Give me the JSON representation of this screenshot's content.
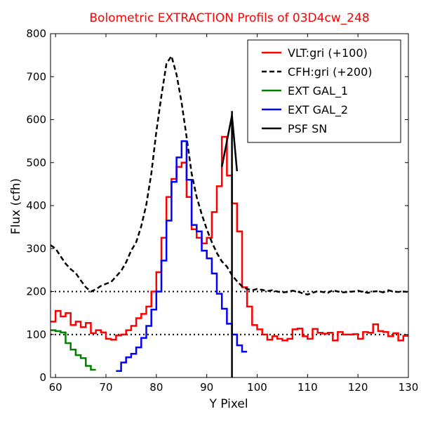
{
  "chart_data": {
    "type": "line",
    "title": "Bolometric EXTRACTION Profils of 03D4cw_248",
    "title_color": "#ff0000",
    "xlabel": "Y Pixel",
    "ylabel": "Flux (cfh)",
    "xlim": [
      59,
      130
    ],
    "ylim": [
      0,
      800
    ],
    "xticks": [
      60,
      70,
      80,
      90,
      100,
      110,
      120,
      130
    ],
    "yticks": [
      0,
      100,
      200,
      300,
      400,
      500,
      600,
      700,
      800
    ],
    "grid": false,
    "legend_position": "top-right",
    "reference_lines": [
      {
        "y": 200,
        "style": "dotted",
        "color": "#000000"
      },
      {
        "y": 100,
        "style": "dotted",
        "color": "#000000"
      }
    ],
    "series": [
      {
        "name": "VLT:gri (+100)",
        "color": "#ff0000",
        "style": "steps",
        "x": [
          59,
          60,
          61,
          62,
          63,
          64,
          65,
          66,
          67,
          68,
          69,
          70,
          71,
          72,
          73,
          74,
          75,
          76,
          77,
          78,
          79,
          80,
          81,
          82,
          83,
          84,
          85,
          86,
          87,
          88,
          89,
          90,
          91,
          92,
          93,
          94,
          95,
          96,
          97,
          98,
          99,
          100,
          101,
          102,
          103,
          104,
          105,
          106,
          107,
          108,
          109,
          110,
          111,
          112,
          113,
          114,
          115,
          116,
          117,
          118,
          119,
          120,
          121,
          122,
          123,
          124,
          125,
          126,
          127,
          128,
          129
        ],
        "values": [
          130,
          155,
          142,
          150,
          122,
          130,
          117,
          127,
          103,
          110,
          105,
          90,
          88,
          98,
          100,
          110,
          120,
          138,
          148,
          165,
          200,
          245,
          325,
          420,
          462,
          490,
          500,
          420,
          345,
          325,
          312,
          325,
          385,
          445,
          560,
          470,
          405,
          340,
          210,
          165,
          122,
          112,
          100,
          88,
          96,
          90,
          86,
          90,
          112,
          114,
          96,
          90,
          113,
          104,
          102,
          104,
          86,
          106,
          100,
          100,
          101,
          90,
          106,
          104,
          124,
          108,
          106,
          96,
          103,
          86,
          97
        ],
        "x_end": 130
      },
      {
        "name": "CFH:gri (+200)",
        "color": "#000000",
        "style": "dashed",
        "x": [
          59,
          60,
          61,
          62,
          63,
          64,
          65,
          66,
          67,
          68,
          69,
          70,
          71,
          72,
          73,
          74,
          75,
          76,
          77,
          78,
          79,
          80,
          81,
          82,
          83,
          84,
          85,
          86,
          87,
          88,
          89,
          90,
          91,
          92,
          93,
          94,
          95,
          96,
          97,
          98,
          99,
          100,
          101,
          102,
          103,
          104,
          105,
          106,
          107,
          108,
          109,
          110,
          111,
          112,
          113,
          114,
          115,
          116,
          117,
          118,
          119,
          120,
          121,
          122,
          123,
          124,
          125,
          126,
          127,
          128,
          129,
          130
        ],
        "values": [
          308,
          300,
          282,
          265,
          252,
          243,
          226,
          210,
          200,
          205,
          213,
          218,
          222,
          235,
          248,
          268,
          295,
          315,
          352,
          402,
          475,
          572,
          655,
          730,
          748,
          705,
          640,
          560,
          475,
          420,
          380,
          345,
          315,
          290,
          270,
          258,
          238,
          224,
          212,
          206,
          203,
          206,
          204,
          201,
          203,
          200,
          198,
          199,
          202,
          200,
          196,
          193,
          197,
          201,
          199,
          197,
          203,
          200,
          198,
          199,
          200,
          202,
          199,
          197,
          200,
          201,
          198,
          203,
          200,
          199,
          200,
          199
        ]
      },
      {
        "name": "EXT GAL_1",
        "color": "#008000",
        "style": "steps",
        "x": [
          59,
          60,
          61,
          62,
          63,
          64,
          65,
          66,
          67
        ],
        "values": [
          110,
          108,
          105,
          80,
          65,
          52,
          45,
          27,
          18
        ],
        "x_end": 68
      },
      {
        "name": "EXT GAL_2",
        "color": "#0000ff",
        "style": "steps",
        "x": [
          72,
          73,
          74,
          75,
          76,
          77,
          78,
          79,
          80,
          81,
          82,
          83,
          84,
          85,
          86,
          87,
          88,
          89,
          90,
          91,
          92,
          93,
          94,
          95,
          96,
          97
        ],
        "values": [
          15,
          35,
          47,
          55,
          70,
          92,
          120,
          158,
          200,
          272,
          365,
          455,
          512,
          550,
          460,
          355,
          340,
          295,
          277,
          242,
          195,
          160,
          125,
          100,
          75,
          60
        ],
        "x_end": 98
      },
      {
        "name": "PSF SN",
        "color": "#000000",
        "style": "solid",
        "x": [
          93,
          94,
          95,
          96
        ],
        "values": [
          490,
          550,
          610,
          480
        ],
        "vertical_line_x": 95
      }
    ]
  }
}
